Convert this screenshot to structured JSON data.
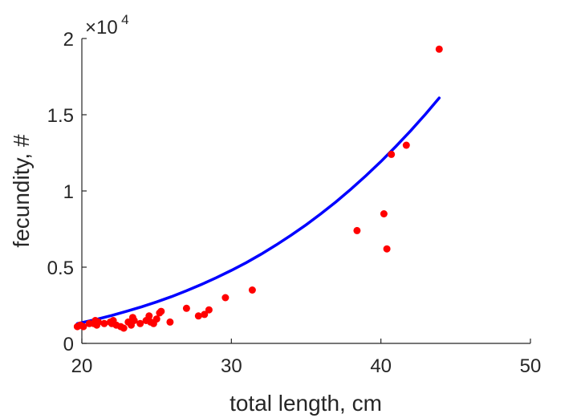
{
  "chart_data": {
    "type": "scatter",
    "xlabel": "total length, cm",
    "ylabel": "fecundity, #",
    "xlim": [
      20,
      50
    ],
    "ylim": [
      0,
      20000
    ],
    "x_ticks": [
      "20",
      "30",
      "40",
      "50"
    ],
    "y_ticks": [
      "0",
      "0.5",
      "1",
      "1.5",
      "2"
    ],
    "y_exponent_base": "×10",
    "y_exponent_power": "4",
    "grid": false,
    "series": [
      {
        "type": "scatter",
        "color": "#ff0000",
        "x": [
          19.7,
          19.9,
          20.1,
          20.5,
          20.8,
          20.9,
          21.0,
          21.1,
          21.5,
          21.9,
          22.0,
          22.1,
          22.3,
          22.6,
          22.8,
          23.1,
          23.3,
          23.4,
          23.5,
          23.9,
          24.3,
          24.5,
          24.6,
          24.8,
          25.0,
          25.2,
          25.3,
          25.9,
          27.0,
          27.8,
          28.2,
          28.5,
          29.6,
          31.4,
          38.4,
          40.2,
          40.4,
          40.7,
          41.7,
          43.9
        ],
        "y": [
          1100,
          1200,
          1100,
          1300,
          1300,
          1500,
          1200,
          1400,
          1300,
          1400,
          1300,
          1500,
          1200,
          1100,
          1000,
          1400,
          1200,
          1700,
          1500,
          1300,
          1500,
          1800,
          1400,
          1300,
          1600,
          2000,
          2100,
          1400,
          2300,
          1800,
          1900,
          2200,
          3000,
          3500,
          7400,
          8500,
          6200,
          12400,
          13000,
          19300
        ]
      },
      {
        "type": "line",
        "color": "#0000ff",
        "x": [
          19.7,
          21.0,
          22.0,
          23.0,
          24.0,
          25.0,
          26.0,
          27.0,
          28.0,
          29.0,
          30.0,
          31.0,
          32.0,
          33.0,
          34.0,
          35.0,
          36.0,
          37.0,
          38.0,
          39.0,
          40.0,
          41.0,
          42.0,
          43.0,
          43.9
        ],
        "y": [
          1300,
          1580,
          1830,
          2110,
          2400,
          2720,
          3070,
          3450,
          3870,
          4310,
          4790,
          5300,
          5860,
          6460,
          7100,
          7780,
          8510,
          9290,
          10120,
          11000,
          11930,
          12920,
          13960,
          15060,
          16100
        ]
      }
    ]
  }
}
